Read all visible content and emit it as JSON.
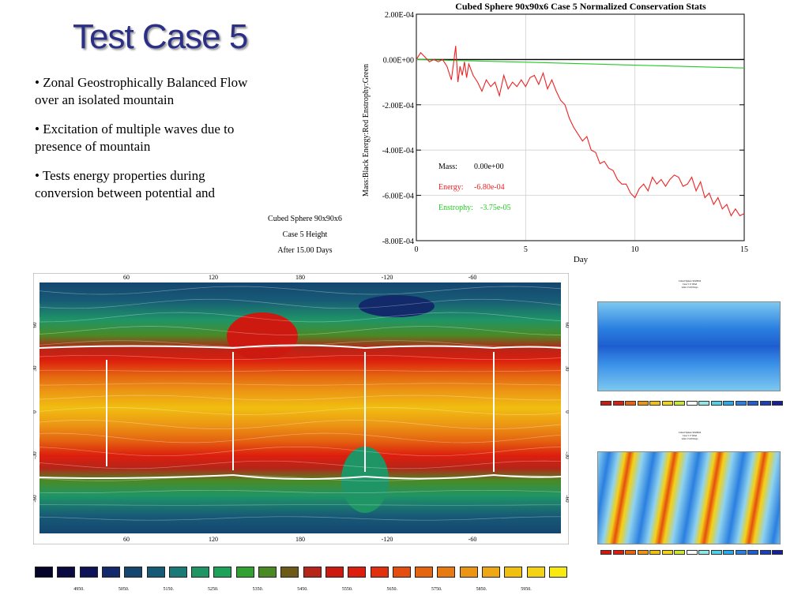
{
  "slide": {
    "title": "Test Case 5",
    "bullets": [
      "• Zonal Geostrophically Balanced Flow over an isolated mountain",
      "• Excitation of multiple waves due to presence of mountain",
      "• Tests energy properties during conversion between potential and"
    ]
  },
  "map_caption": {
    "line1": "Cubed Sphere 90x90x6",
    "line2": "Case 5 Height",
    "line3": "After 15.00 Days"
  },
  "chart_data": [
    {
      "type": "line",
      "title": "Cubed Sphere 90x90x6 Case 5 Normalized Conservation Stats",
      "xlabel": "Day",
      "ylabel": "Mass:Black   Energy:Red   Enstrophy:Green",
      "xlim": [
        0,
        15
      ],
      "ylim": [
        -0.0008,
        0.0002
      ],
      "xticks": [
        "0",
        "5",
        "10",
        "15"
      ],
      "yticks": [
        "2.00E-04",
        "0.00E+00",
        "-2.00E-04",
        "-4.00E-04",
        "-6.00E-04",
        "-8.00E-04"
      ],
      "grid": true,
      "annotations": [
        {
          "label": "Mass:",
          "value": "0.00e+00",
          "color": "#000000"
        },
        {
          "label": "Energy:",
          "value": "-6.80e-04",
          "color": "#ee2222"
        },
        {
          "label": "Enstrophy:",
          "value": "-3.75e-05",
          "color": "#22cc22"
        }
      ],
      "series": [
        {
          "color": "#000000",
          "x": [
            0,
            15
          ],
          "y": [
            0,
            0
          ]
        },
        {
          "color": "#22cc22",
          "x": [
            0,
            5,
            10,
            15
          ],
          "y": [
            0,
            -1.2e-05,
            -2.5e-05,
            -3.75e-05
          ]
        },
        {
          "color": "#ee2222",
          "x": [
            0,
            0.2,
            0.4,
            0.6,
            0.8,
            1.0,
            1.2,
            1.4,
            1.6,
            1.7,
            1.8,
            1.9,
            2.0,
            2.1,
            2.2,
            2.3,
            2.4,
            2.6,
            2.8,
            3.0,
            3.2,
            3.4,
            3.6,
            3.8,
            4.0,
            4.2,
            4.4,
            4.6,
            4.8,
            5.0,
            5.2,
            5.4,
            5.6,
            5.8,
            6.0,
            6.2,
            6.4,
            6.6,
            6.8,
            7.0,
            7.2,
            7.4,
            7.6,
            7.8,
            8.0,
            8.2,
            8.4,
            8.6,
            8.8,
            9.0,
            9.2,
            9.4,
            9.6,
            9.8,
            10.0,
            10.2,
            10.4,
            10.6,
            10.8,
            11.0,
            11.2,
            11.4,
            11.6,
            11.8,
            12.0,
            12.2,
            12.4,
            12.6,
            12.8,
            13.0,
            13.2,
            13.4,
            13.6,
            13.8,
            14.0,
            14.2,
            14.4,
            14.6,
            14.8,
            15.0
          ],
          "y": [
            0,
            3e-05,
            1e-05,
            -1e-05,
            0,
            -1e-05,
            0,
            -3e-05,
            -9e-05,
            -2e-05,
            6e-05,
            -0.0001,
            -3e-05,
            -7e-05,
            -1e-05,
            -8e-05,
            -2e-05,
            -7e-05,
            -0.0001,
            -0.00014,
            -9e-05,
            -0.00012,
            -0.0001,
            -0.00016,
            -7e-05,
            -0.00013,
            -0.0001,
            -0.00012,
            -9e-05,
            -0.00012,
            -8e-05,
            -7e-05,
            -0.00011,
            -6e-05,
            -0.00013,
            -9e-05,
            -0.00014,
            -0.00018,
            -0.0002,
            -0.00026,
            -0.0003,
            -0.00033,
            -0.00036,
            -0.00034,
            -0.0004,
            -0.00041,
            -0.00046,
            -0.00045,
            -0.00048,
            -0.00049,
            -0.00053,
            -0.00055,
            -0.00055,
            -0.00059,
            -0.00061,
            -0.00057,
            -0.00055,
            -0.00058,
            -0.00052,
            -0.00055,
            -0.00053,
            -0.00056,
            -0.00053,
            -0.00051,
            -0.00052,
            -0.00056,
            -0.00055,
            -0.00052,
            -0.00058,
            -0.00054,
            -0.00061,
            -0.00059,
            -0.00064,
            -0.00061,
            -0.00066,
            -0.00064,
            -0.00069,
            -0.00066,
            -0.00069,
            -0.00068
          ]
        }
      ]
    },
    {
      "type": "heatmap",
      "title": "",
      "x_ticks_top": [
        "60",
        "120",
        "180",
        "-120",
        "-60"
      ],
      "x_ticks_bottom": [
        "60",
        "120",
        "180",
        "-120",
        "-60"
      ],
      "y_ticks": [
        "60",
        "30",
        "0",
        "-30",
        "-60"
      ],
      "legend_colors": [
        "#05052a",
        "#0a0a40",
        "#0d1356",
        "#132a6a",
        "#14466f",
        "#175a76",
        "#1a7a76",
        "#1f9566",
        "#1ea25a",
        "#33a032",
        "#4a8a25",
        "#6e5a18",
        "#b52518",
        "#cc1a10",
        "#dd1e0e",
        "#e2300e",
        "#e44e10",
        "#e46410",
        "#e87a12",
        "#ec9414",
        "#eea816",
        "#f0bf10",
        "#f4d214",
        "#f8ea10"
      ],
      "legend_labels": [
        "4950.",
        "5050.",
        "5150.",
        "5250.",
        "5350.",
        "5450.",
        "5550.",
        "5650.",
        "5750.",
        "5850.",
        "5950."
      ]
    }
  ],
  "thumbnails": [
    {
      "title1": "Cubed Sphere 90x90x6",
      "title2": "Case 5 U Wind",
      "title3": "After 15.00 Days"
    },
    {
      "title1": "Cubed Sphere 90x90x6",
      "title2": "Case 5 V Wind",
      "title3": "After 15.00 Days"
    }
  ]
}
